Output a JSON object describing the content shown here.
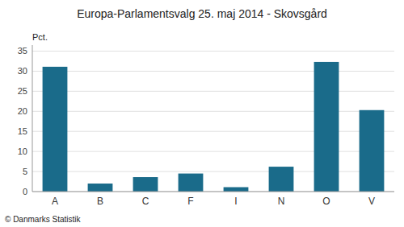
{
  "chart_data": {
    "type": "bar",
    "title": "Europa-Parlamentsvalg 25. maj 2014 - Skovsgård",
    "categories": [
      "A",
      "B",
      "C",
      "F",
      "I",
      "N",
      "O",
      "V"
    ],
    "values": [
      31.1,
      2.0,
      3.6,
      4.5,
      1.1,
      6.2,
      32.3,
      20.3
    ],
    "color": "#1a6b8a",
    "ylabel": "Pct.",
    "footer": "© Danmarks Statistik",
    "ylim": [
      0,
      36.5
    ],
    "yticks": [
      0,
      5,
      10,
      15,
      20,
      25,
      30,
      35
    ],
    "grid": true
  }
}
